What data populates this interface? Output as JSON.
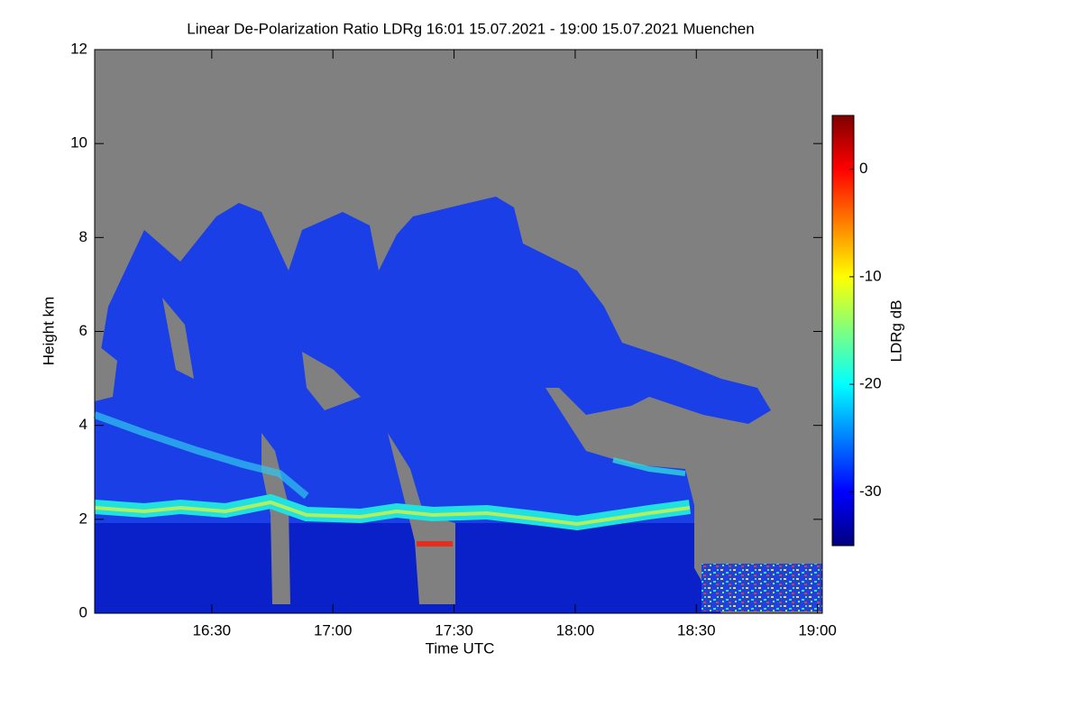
{
  "chart_data": {
    "type": "heatmap",
    "title": "Linear De-Polarization Ratio LDRg   16:01 15.07.2021 - 19:00 15.07.2021 Muenchen",
    "x_label": "Time UTC",
    "y_label": "Height km",
    "xlim": [
      16.0167,
      19.02
    ],
    "xticks": [
      {
        "value": 16.5,
        "label": "16:30"
      },
      {
        "value": 17,
        "label": "17:00"
      },
      {
        "value": 17.5,
        "label": "17:30"
      },
      {
        "value": 18,
        "label": "18:00"
      },
      {
        "value": 18.5,
        "label": "18:30"
      },
      {
        "value": 19,
        "label": "19:00"
      }
    ],
    "ylim": [
      0,
      12
    ],
    "yticks": [
      0,
      2,
      4,
      6,
      8,
      10,
      12
    ],
    "colorbar_label": "LDRg dB",
    "colormap": "jet",
    "clim": [
      -35,
      5
    ],
    "cticks": [
      0,
      -10,
      -20,
      -30
    ]
  }
}
